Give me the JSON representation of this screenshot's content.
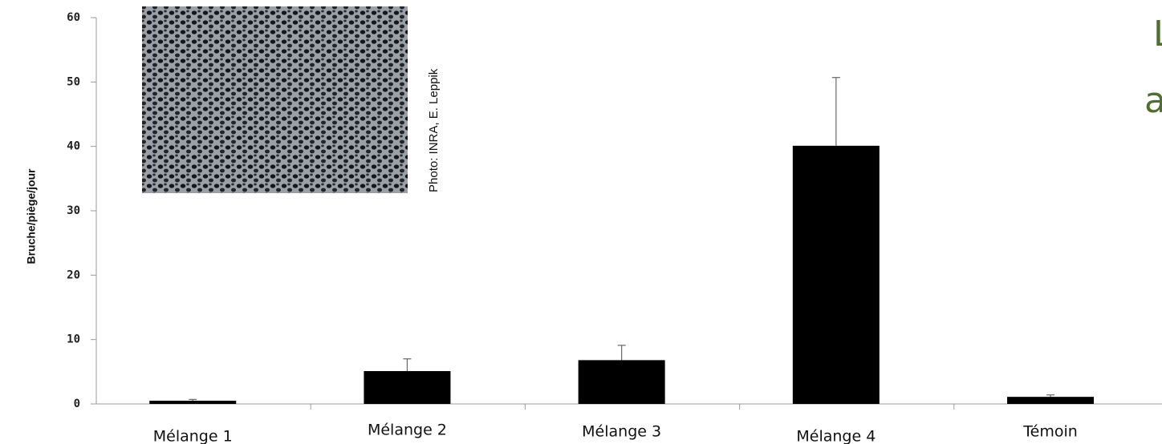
{
  "chart_data": {
    "type": "bar",
    "y_label": "Bruche/piège/jour",
    "photo_credit": "Photo: INRA, E. Leppik",
    "cropped_title_lines": [
      "L",
      "a"
    ],
    "categories": [
      "Mélange 1",
      "Mélange 2",
      "Mélange 3",
      "Mélange 4",
      "Témoin"
    ],
    "values": [
      0.5,
      5.1,
      6.8,
      40.1,
      1.1
    ],
    "errors": [
      0.2,
      1.9,
      2.3,
      10.6,
      0.3
    ],
    "color": "#000000",
    "ylim": [
      0,
      60
    ],
    "yticks": [
      0,
      10,
      20,
      30,
      40,
      50,
      60
    ],
    "grid": false
  }
}
